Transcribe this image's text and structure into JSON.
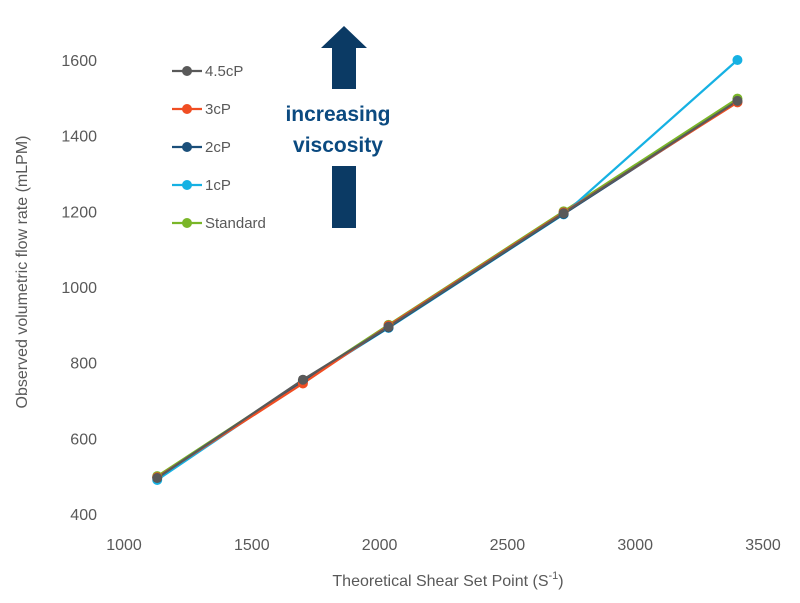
{
  "chart_data": {
    "type": "line",
    "title": "",
    "xlabel_main": "Theoretical Shear Set Point (S",
    "xlabel_sup": "-1",
    "xlabel_end": ")",
    "ylabel": "Observed volumetric flow rate (mLPM)",
    "xlim": [
      1000,
      3500
    ],
    "ylim": [
      400,
      1600
    ],
    "xticks": [
      1000,
      1500,
      2000,
      2500,
      3000,
      3500
    ],
    "yticks": [
      400,
      600,
      800,
      1000,
      1200,
      1400,
      1600
    ],
    "grid": false,
    "legend_position": "top-left",
    "series": [
      {
        "name": "4.5cP",
        "color": "#595959",
        "x": [
          1130,
          1700,
          2035,
          2720,
          3400
        ],
        "y": [
          495,
          755,
          895,
          1195,
          1492
        ]
      },
      {
        "name": "3cP",
        "color": "#f04e23",
        "x": [
          1130,
          1700,
          2035,
          2720,
          3400
        ],
        "y": [
          497,
          745,
          898,
          1197,
          1488
        ]
      },
      {
        "name": "2cP",
        "color": "#1b4f7a",
        "x": [
          1130,
          1700,
          2035,
          2720,
          3400
        ],
        "y": [
          496,
          752,
          893,
          1193,
          1490
        ]
      },
      {
        "name": "1cP",
        "color": "#16b1e3",
        "x": [
          1130,
          1700,
          2035,
          2720,
          3400
        ],
        "y": [
          490,
          750,
          892,
          1192,
          1600
        ]
      },
      {
        "name": "Standard",
        "color": "#7ab628",
        "x": [
          1130,
          1700,
          2035,
          2720,
          3400
        ],
        "y": [
          500,
          752,
          900,
          1200,
          1498
        ]
      }
    ],
    "annotation": {
      "line1": "increasing",
      "line2": "viscosity",
      "color": "#0b4a80"
    }
  }
}
